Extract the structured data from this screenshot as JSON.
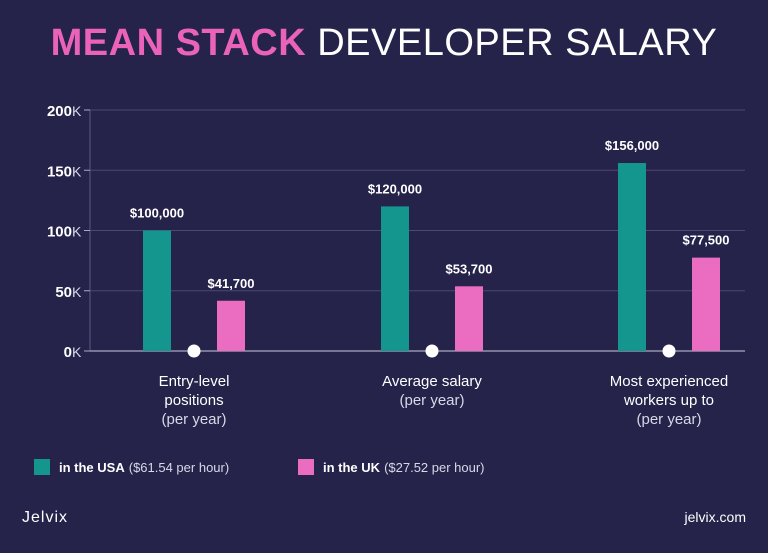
{
  "header": {
    "title_accent": "MEAN STACK",
    "title_rest": "DEVELOPER SALARY"
  },
  "chart_data": {
    "type": "bar",
    "categories": [
      {
        "line1": "Entry-level",
        "line2": "positions",
        "line3": "(per year)"
      },
      {
        "line1": "Average salary",
        "line2": "(per year)",
        "line3": ""
      },
      {
        "line1": "Most experienced",
        "line2": "workers up to",
        "line3": "(per year)"
      }
    ],
    "series": [
      {
        "name": "in the USA",
        "note": "($61.54 per hour)",
        "color": "#14968f",
        "values": [
          100000,
          120000,
          156000
        ],
        "labels": [
          "$100,000",
          "$120,000",
          "$156,000"
        ]
      },
      {
        "name": "in the UK",
        "note": "($27.52 per hour)",
        "color": "#ea6dc2",
        "values": [
          41700,
          53700,
          77500
        ],
        "labels": [
          "$41,700",
          "$53,700",
          "$77,500"
        ]
      }
    ],
    "ylim": [
      0,
      200000
    ],
    "yticks": [
      {
        "value": 0,
        "label": "0"
      },
      {
        "value": 50000,
        "label": "50"
      },
      {
        "value": 100000,
        "label": "100"
      },
      {
        "value": 150000,
        "label": "150"
      },
      {
        "value": 200000,
        "label": "200"
      }
    ],
    "ytick_unit": "K",
    "grid": true
  },
  "footer": {
    "brand": "Jelvix",
    "site": "jelvix.com"
  }
}
